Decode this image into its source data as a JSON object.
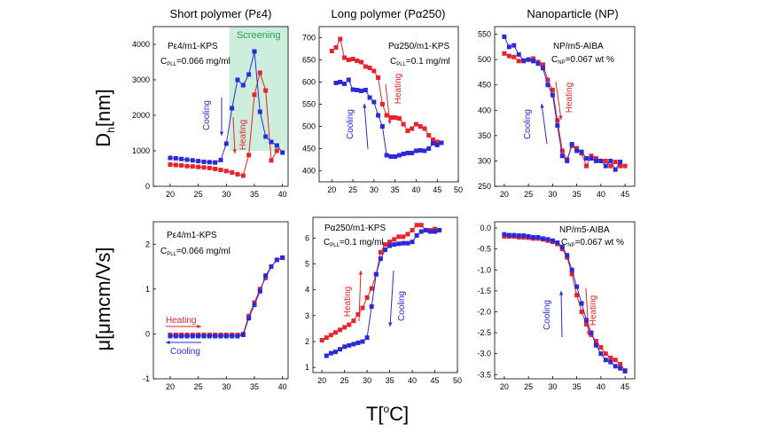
{
  "figure": {
    "row_labels": {
      "top_main": "D",
      "top_sub": "h",
      "top_rest": "[nm]",
      "bottom": "μ[μmcm/Vs]"
    },
    "x_label_main": "T[",
    "x_label_sup": "o",
    "x_label_rest": "C]"
  },
  "colors": {
    "heating": "#e8232a",
    "cooling": "#2a2ad8",
    "screening": "#cdeedd",
    "screening_text": "#27a04a"
  },
  "chart_data": [
    {
      "id": "p1",
      "type": "scatter",
      "title": "Short polymer (Pε4)",
      "annotations": [
        {
          "id": "sample",
          "text": "Pε4/m1-KPS"
        },
        {
          "id": "conc",
          "main": "C",
          "sub": "PLL",
          "rest": "=0.066 mg/ml"
        },
        {
          "id": "cooling",
          "text": "Cooling"
        },
        {
          "id": "heating",
          "text": "Heating"
        }
      ],
      "screening": {
        "label": "Screening",
        "x": [
          30.5,
          41
        ]
      },
      "xlim": [
        17,
        41
      ],
      "ylim": [
        0,
        4500
      ],
      "xticks": [
        20,
        25,
        30,
        35,
        40
      ],
      "yticks": [
        0,
        1000,
        2000,
        3000,
        4000
      ],
      "series": [
        {
          "name": "Heating",
          "x": [
            20,
            21,
            22,
            23,
            24,
            25,
            26,
            27,
            28,
            29,
            30,
            31,
            32,
            33,
            34,
            35,
            36,
            37,
            38,
            39
          ],
          "y": [
            610,
            600,
            590,
            570,
            560,
            545,
            530,
            515,
            490,
            460,
            430,
            390,
            340,
            300,
            880,
            2580,
            3200,
            2700,
            730,
            1000
          ]
        },
        {
          "name": "Cooling",
          "x": [
            20,
            21,
            22,
            23,
            24,
            25,
            26,
            27,
            28,
            29,
            30,
            31,
            32,
            33,
            34,
            35,
            36,
            37,
            38,
            39,
            40
          ],
          "y": [
            800,
            790,
            770,
            750,
            730,
            710,
            690,
            680,
            670,
            740,
            1200,
            2200,
            3000,
            2850,
            3150,
            3800,
            2100,
            1400,
            1250,
            1150,
            950
          ]
        }
      ]
    },
    {
      "id": "p2",
      "type": "scatter",
      "title": "Long polymer (Pα250)",
      "annotations": [
        {
          "id": "sample",
          "text": "Pα250/m1-KPS"
        },
        {
          "id": "conc",
          "main": "C",
          "sub": "PLL",
          "rest": "=0.1 mg/ml"
        },
        {
          "id": "heating",
          "text": "Heating"
        },
        {
          "id": "cooling",
          "text": "Cooling"
        }
      ],
      "xlim": [
        17,
        50
      ],
      "ylim": [
        375,
        725
      ],
      "xticks": [
        20,
        25,
        30,
        35,
        40,
        45,
        50
      ],
      "yticks": [
        400,
        450,
        500,
        550,
        600,
        650,
        700
      ],
      "series": [
        {
          "name": "Heating",
          "x": [
            20,
            21,
            22,
            23,
            24,
            25,
            26,
            27,
            28,
            29,
            30,
            31,
            32,
            33,
            34,
            35,
            36,
            37,
            38,
            39,
            40,
            41,
            42,
            43,
            44,
            45,
            46
          ],
          "y": [
            670,
            678,
            697,
            655,
            650,
            652,
            648,
            645,
            635,
            632,
            625,
            610,
            550,
            525,
            520,
            520,
            518,
            505,
            490,
            495,
            505,
            500,
            495,
            480,
            470,
            465,
            463
          ]
        },
        {
          "name": "Cooling",
          "x": [
            21,
            22,
            23,
            24,
            25,
            26,
            27,
            28,
            29,
            30,
            31,
            32,
            33,
            34,
            35,
            36,
            37,
            38,
            39,
            40,
            41,
            42,
            43,
            44,
            45,
            46
          ],
          "y": [
            598,
            600,
            596,
            605,
            583,
            582,
            580,
            582,
            565,
            555,
            525,
            500,
            435,
            432,
            432,
            435,
            438,
            440,
            440,
            445,
            446,
            445,
            450,
            462,
            458,
            463
          ]
        }
      ]
    },
    {
      "id": "p3",
      "type": "scatter",
      "title": "Nanoparticle (NP)",
      "annotations": [
        {
          "id": "sample",
          "text": "NP/m5-AIBA"
        },
        {
          "id": "conc",
          "main": "C",
          "sub": "NP",
          "rest": "=0.067 wt %"
        },
        {
          "id": "heating",
          "text": "Heating"
        },
        {
          "id": "cooling",
          "text": "Cooling"
        }
      ],
      "xlim": [
        18,
        47
      ],
      "ylim": [
        250,
        565
      ],
      "xticks": [
        20,
        25,
        30,
        35,
        40,
        45
      ],
      "yticks": [
        250,
        300,
        350,
        400,
        450,
        500,
        550
      ],
      "series": [
        {
          "name": "Heating",
          "x": [
            20,
            21,
            22,
            23,
            24,
            25,
            26,
            27,
            28,
            29,
            30,
            31,
            32,
            33,
            34,
            35,
            36,
            37,
            38,
            39,
            40,
            41,
            42,
            43,
            44,
            45
          ],
          "y": [
            512,
            507,
            505,
            497,
            497,
            500,
            502,
            495,
            490,
            460,
            440,
            380,
            320,
            303,
            330,
            325,
            315,
            290,
            310,
            305,
            300,
            300,
            290,
            298,
            290,
            290
          ]
        },
        {
          "name": "Cooling",
          "x": [
            20,
            21,
            22,
            23,
            24,
            25,
            26,
            27,
            28,
            29,
            30,
            31,
            32,
            33,
            34,
            35,
            36,
            37,
            38,
            39,
            40,
            41,
            42,
            43,
            44
          ],
          "y": [
            545,
            525,
            528,
            510,
            498,
            500,
            497,
            492,
            483,
            450,
            430,
            370,
            310,
            300,
            333,
            320,
            318,
            305,
            305,
            300,
            300,
            290,
            300,
            283,
            298
          ]
        }
      ]
    },
    {
      "id": "p4",
      "type": "scatter",
      "annotations": [
        {
          "id": "sample",
          "text": "Pε4/m1-KPS"
        },
        {
          "id": "conc",
          "main": "C",
          "sub": "PLL",
          "rest": "=0.066 mg/ml"
        },
        {
          "id": "heating",
          "text": "Heating"
        },
        {
          "id": "cooling",
          "text": "Cooling"
        }
      ],
      "xlim": [
        17,
        41
      ],
      "ylim": [
        -1,
        2.5
      ],
      "xticks": [
        20,
        25,
        30,
        35,
        40
      ],
      "yticks": [
        -1,
        0,
        1,
        2
      ],
      "series": [
        {
          "name": "Heating",
          "x": [
            20,
            21,
            22,
            23,
            24,
            25,
            26,
            27,
            28,
            29,
            30,
            31,
            32,
            33,
            34,
            35,
            36,
            37,
            38,
            39,
            40
          ],
          "y": [
            -0.02,
            -0.02,
            -0.02,
            -0.02,
            -0.02,
            -0.02,
            -0.02,
            -0.02,
            -0.02,
            -0.02,
            -0.02,
            -0.02,
            -0.02,
            0.0,
            0.4,
            0.7,
            1.0,
            1.25,
            1.5,
            1.65,
            1.7
          ]
        },
        {
          "name": "Cooling",
          "x": [
            20,
            21,
            22,
            23,
            24,
            25,
            26,
            27,
            28,
            29,
            30,
            31,
            32,
            33,
            34,
            35,
            36,
            37,
            38,
            39,
            40
          ],
          "y": [
            -0.05,
            -0.05,
            -0.05,
            -0.05,
            -0.05,
            -0.05,
            -0.05,
            -0.05,
            -0.05,
            -0.05,
            -0.05,
            -0.05,
            -0.05,
            -0.02,
            0.35,
            0.65,
            0.95,
            1.3,
            1.5,
            1.65,
            1.7
          ]
        }
      ]
    },
    {
      "id": "p5",
      "type": "scatter",
      "annotations": [
        {
          "id": "sample",
          "text": "Pα250/m1-KPS"
        },
        {
          "id": "conc",
          "main": "C",
          "sub": "PLL",
          "rest": "=0.1 mg/ml"
        },
        {
          "id": "heating",
          "text": "Heating"
        },
        {
          "id": "cooling",
          "text": "Cooling"
        }
      ],
      "xlim": [
        18,
        50
      ],
      "ylim": [
        0.8,
        6.8
      ],
      "xticks": [
        20,
        25,
        30,
        35,
        40,
        45,
        50
      ],
      "yticks": [
        1,
        2,
        3,
        4,
        5,
        6
      ],
      "series": [
        {
          "name": "Heating",
          "x": [
            20,
            21,
            22,
            23,
            24,
            25,
            26,
            27,
            28,
            29,
            30,
            31,
            32,
            33,
            34,
            35,
            36,
            37,
            38,
            39,
            40,
            41,
            42,
            43,
            44,
            45,
            46
          ],
          "y": [
            2.05,
            2.15,
            2.25,
            2.35,
            2.45,
            2.55,
            2.65,
            2.8,
            3.05,
            3.3,
            3.7,
            4.05,
            4.6,
            5.45,
            5.75,
            5.85,
            5.95,
            6.05,
            6.05,
            6.15,
            6.3,
            6.5,
            6.5,
            6.3,
            6.3,
            6.35,
            6.3
          ]
        },
        {
          "name": "Cooling",
          "x": [
            21,
            22,
            23,
            24,
            25,
            26,
            27,
            28,
            29,
            30,
            31,
            32,
            33,
            34,
            35,
            36,
            37,
            38,
            39,
            40,
            41,
            42,
            43,
            44,
            45,
            46
          ],
          "y": [
            1.45,
            1.55,
            1.6,
            1.7,
            1.8,
            1.85,
            1.9,
            1.95,
            2.0,
            2.15,
            3.35,
            4.6,
            5.2,
            5.55,
            5.7,
            5.75,
            5.78,
            5.8,
            5.8,
            5.85,
            6.1,
            6.25,
            6.3,
            6.25,
            6.25,
            6.3
          ]
        }
      ]
    },
    {
      "id": "p6",
      "type": "scatter",
      "annotations": [
        {
          "id": "sample",
          "text": "NP/m5-AIBA"
        },
        {
          "id": "conc",
          "main": "C",
          "sub": "NP",
          "rest": "=0.067 wt %"
        },
        {
          "id": "heating",
          "text": "Heating"
        },
        {
          "id": "cooling",
          "text": "Cooling"
        }
      ],
      "xlim": [
        18,
        47
      ],
      "ylim": [
        -3.6,
        0.15
      ],
      "xticks": [
        20,
        25,
        30,
        35,
        40,
        45
      ],
      "yticks": [
        -3.5,
        -3.0,
        -2.5,
        -2.0,
        -1.5,
        -1.0,
        -0.5,
        0.0
      ],
      "series": [
        {
          "name": "Heating",
          "x": [
            20,
            21,
            22,
            23,
            24,
            25,
            26,
            27,
            28,
            29,
            30,
            31,
            32,
            33,
            34,
            35,
            36,
            37,
            38,
            39,
            40,
            41,
            42,
            43,
            44,
            45
          ],
          "y": [
            -0.2,
            -0.2,
            -0.2,
            -0.22,
            -0.22,
            -0.23,
            -0.25,
            -0.25,
            -0.27,
            -0.3,
            -0.33,
            -0.38,
            -0.5,
            -0.7,
            -1.1,
            -1.6,
            -2.0,
            -2.3,
            -2.55,
            -2.7,
            -2.85,
            -3.0,
            -3.1,
            -3.15,
            -3.25,
            -3.4
          ]
        },
        {
          "name": "Cooling",
          "x": [
            20,
            21,
            22,
            23,
            24,
            25,
            26,
            27,
            28,
            29,
            30,
            31,
            32,
            33,
            34,
            35,
            36,
            37,
            38,
            39,
            40,
            41,
            42,
            43,
            44,
            45
          ],
          "y": [
            -0.15,
            -0.17,
            -0.17,
            -0.18,
            -0.18,
            -0.2,
            -0.22,
            -0.22,
            -0.25,
            -0.27,
            -0.3,
            -0.35,
            -0.45,
            -0.65,
            -1.0,
            -1.4,
            -1.8,
            -2.2,
            -2.5,
            -2.8,
            -3.0,
            -3.15,
            -3.2,
            -3.3,
            -3.35,
            -3.42
          ]
        }
      ]
    }
  ]
}
